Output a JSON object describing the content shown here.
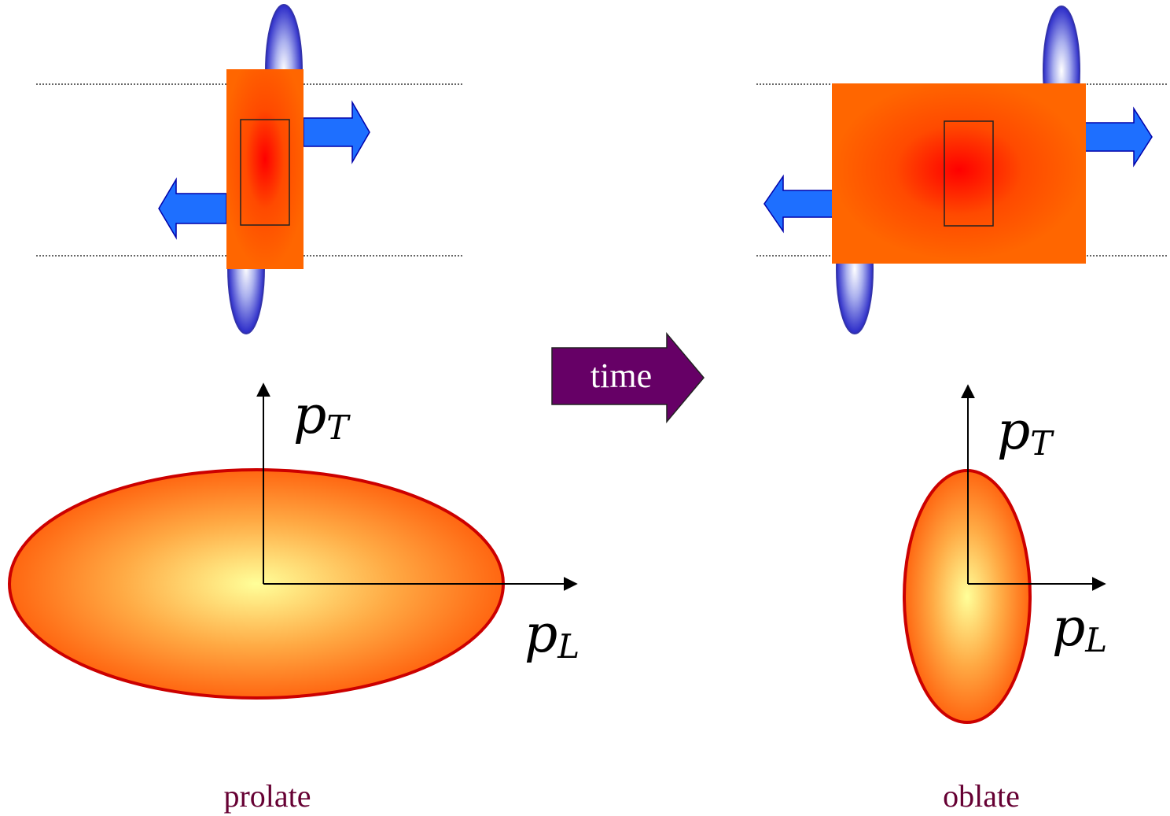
{
  "left_panel": {
    "axis_y_label": "p",
    "axis_y_subscript": "T",
    "axis_x_label": "p",
    "axis_x_subscript": "L",
    "caption": "prolate"
  },
  "right_panel": {
    "axis_y_label": "p",
    "axis_y_subscript": "T",
    "axis_x_label": "p",
    "axis_x_subscript": "L",
    "caption": "oblate"
  },
  "time_arrow": {
    "label": "time"
  },
  "colors": {
    "fireball_orange": "#ff6600",
    "fireball_core": "#ff0000",
    "nucleus_blue": "#3333cc",
    "flow_arrow_blue": "#1e6fff",
    "ellipse_border": "#cc0000",
    "time_arrow_fill": "#660066",
    "caption_color": "#660033"
  }
}
